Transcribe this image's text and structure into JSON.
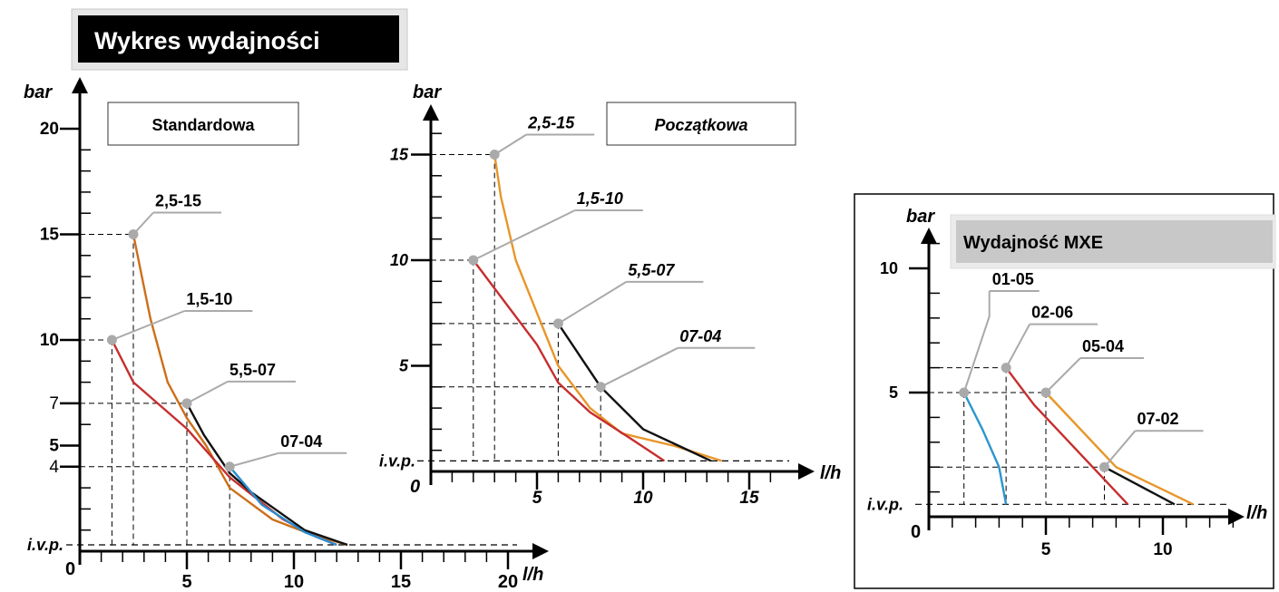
{
  "title": "Wykres wydajności",
  "chart_data": [
    {
      "type": "line",
      "label": "Standardowa",
      "xlabel": "l/h",
      "ylabel": "bar",
      "xlim": [
        0,
        21
      ],
      "ylim": [
        0,
        21
      ],
      "x_ticks": [
        "0",
        "5",
        "10",
        "15",
        "20"
      ],
      "y_ticks": [
        {
          "v": 20,
          "label": "20"
        },
        {
          "v": 15,
          "label": "15"
        },
        {
          "v": 10,
          "label": "10"
        },
        {
          "v": 7,
          "label": "7"
        },
        {
          "v": 5,
          "label": "5"
        },
        {
          "v": 4,
          "label": "4"
        },
        {
          "v": 0.3,
          "label": "i.v.p."
        }
      ],
      "ivp": 0.3,
      "series": [
        {
          "name": "2,5-15",
          "color": "#cc6f1a",
          "marker": [
            2.5,
            15
          ],
          "points": [
            [
              2.5,
              15
            ],
            [
              2.9,
              13
            ],
            [
              3.3,
              11
            ],
            [
              4.1,
              8
            ],
            [
              5.0,
              6.3
            ],
            [
              5.9,
              5
            ],
            [
              7.0,
              3
            ],
            [
              9.0,
              1.5
            ],
            [
              10.8,
              0.8
            ],
            [
              12.5,
              0.3
            ]
          ]
        },
        {
          "name": "1,5-10",
          "color": "#c62e2e",
          "marker": [
            1.5,
            10
          ],
          "points": [
            [
              1.5,
              10
            ],
            [
              2.5,
              8
            ],
            [
              5.0,
              5.8
            ],
            [
              7.0,
              3.5
            ],
            [
              9.5,
              1.5
            ],
            [
              11.0,
              0.7
            ],
            [
              12.0,
              0.3
            ]
          ]
        },
        {
          "name": "5,5-07",
          "color": "#111111",
          "marker": [
            5.0,
            7
          ],
          "points": [
            [
              5.0,
              7
            ],
            [
              5.8,
              5.5
            ],
            [
              7.0,
              3.7
            ],
            [
              8.0,
              2.8
            ],
            [
              10.5,
              1.0
            ],
            [
              12.5,
              0.3
            ]
          ]
        },
        {
          "name": "07-04",
          "color": "#2a8ccf",
          "marker": [
            7.0,
            4
          ],
          "points": [
            [
              7.0,
              4
            ],
            [
              8.5,
              2.2
            ],
            [
              10.5,
              0.9
            ],
            [
              12.0,
              0.3
            ]
          ]
        }
      ]
    },
    {
      "type": "line",
      "label": "Początkowa",
      "xlabel": "l/h",
      "ylabel": "bar",
      "xlim": [
        0,
        16.5
      ],
      "ylim": [
        0,
        17.5
      ],
      "x_ticks": [
        "0",
        "5",
        "10",
        "15"
      ],
      "y_ticks": [
        {
          "v": 15,
          "label": "15"
        },
        {
          "v": 10,
          "label": "10"
        },
        {
          "v": 5,
          "label": "5"
        },
        {
          "v": 0.5,
          "label": "i.v.p."
        }
      ],
      "ivp": 0.5,
      "series": [
        {
          "name": "2,5-15",
          "color": "#e8962a",
          "marker": [
            3.0,
            15
          ],
          "points": [
            [
              3.0,
              15
            ],
            [
              3.3,
              13
            ],
            [
              4.0,
              10
            ],
            [
              5.0,
              7.5
            ],
            [
              6.0,
              5
            ],
            [
              7.5,
              3
            ],
            [
              9.0,
              1.8
            ],
            [
              11.5,
              1.2
            ],
            [
              13.7,
              0.5
            ]
          ]
        },
        {
          "name": "1,5-10",
          "color": "#c62e2e",
          "marker": [
            2.0,
            10
          ],
          "points": [
            [
              2.0,
              10
            ],
            [
              3.5,
              8
            ],
            [
              5.0,
              6.0
            ],
            [
              6.0,
              4.2
            ],
            [
              7.5,
              2.8
            ],
            [
              9.5,
              1.5
            ],
            [
              11.0,
              0.5
            ]
          ]
        },
        {
          "name": "5,5-07",
          "color": "#111111",
          "marker": [
            6.0,
            7
          ],
          "points": [
            [
              6.0,
              7
            ],
            [
              7.0,
              5.5
            ],
            [
              8.0,
              4.0
            ],
            [
              10.0,
              2.0
            ],
            [
              13.2,
              0.5
            ]
          ]
        },
        {
          "name": "07-04",
          "color": "#999999",
          "marker": [
            8.0,
            4
          ],
          "points": []
        }
      ]
    },
    {
      "type": "line",
      "label": "Wydajność MXE",
      "xlabel": "l/h",
      "ylabel": "bar",
      "xlim": [
        0,
        14
      ],
      "ylim": [
        0,
        12.5
      ],
      "x_ticks": [
        "0",
        "5",
        "10"
      ],
      "y_ticks": [
        {
          "v": 10,
          "label": "10"
        },
        {
          "v": 5,
          "label": "5"
        },
        {
          "v": 0.5,
          "label": "i.v.p."
        }
      ],
      "ivp": 0.5,
      "series": [
        {
          "name": "01-05",
          "color": "#2a96cf",
          "marker": [
            1.5,
            5
          ],
          "points": [
            [
              1.5,
              5
            ],
            [
              2.3,
              3.5
            ],
            [
              3.0,
              2
            ],
            [
              3.3,
              0.5
            ]
          ]
        },
        {
          "name": "02-06",
          "color": "#c62e2e",
          "marker": [
            3.3,
            6
          ],
          "points": [
            [
              3.3,
              6
            ],
            [
              4.5,
              4.5
            ],
            [
              6.0,
              3
            ],
            [
              8.5,
              0.5
            ]
          ]
        },
        {
          "name": "05-04",
          "color": "#e8962a",
          "marker": [
            5.0,
            5
          ],
          "points": [
            [
              5.0,
              5
            ],
            [
              8.0,
              2
            ],
            [
              11.3,
              0.5
            ]
          ]
        },
        {
          "name": "07-02",
          "color": "#111111",
          "marker": [
            7.5,
            2
          ],
          "points": [
            [
              7.5,
              2
            ],
            [
              10.5,
              0.5
            ]
          ]
        }
      ]
    }
  ]
}
